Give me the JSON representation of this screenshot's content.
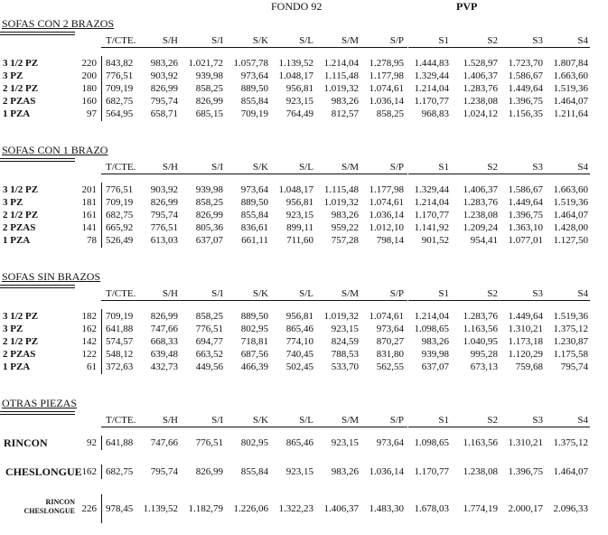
{
  "header": {
    "fondo_title": "FONDO 92",
    "pvp_title": "PVP"
  },
  "columns": [
    "T/CTE.",
    "S/H",
    "S/I",
    "S/K",
    "S/L",
    "S/M",
    "S/P",
    "S1",
    "S2",
    "S3",
    "S4"
  ],
  "sections": [
    {
      "title": "SOFAS CON 2 BRAZOS",
      "rows": [
        {
          "label": "3 1/2 PZ",
          "code": "220",
          "values": [
            "843,82",
            "983,26",
            "1.021,72",
            "1.057,78",
            "1.139,52",
            "1.214,04",
            "1.278,95",
            "1.444,83",
            "1.528,97",
            "1.723,70",
            "1.807,84"
          ]
        },
        {
          "label": "3 PZ",
          "code": "200",
          "values": [
            "776,51",
            "903,92",
            "939,98",
            "973,64",
            "1.048,17",
            "1.115,48",
            "1.177,98",
            "1.329,44",
            "1.406,37",
            "1.586,67",
            "1.663,60"
          ]
        },
        {
          "label": "2 1/2 PZ",
          "code": "180",
          "values": [
            "709,19",
            "826,99",
            "858,25",
            "889,50",
            "956,81",
            "1.019,32",
            "1.074,61",
            "1.214,04",
            "1.283,76",
            "1.449,64",
            "1.519,36"
          ]
        },
        {
          "label": "2 PZAS",
          "code": "160",
          "values": [
            "682,75",
            "795,74",
            "826,99",
            "855,84",
            "923,15",
            "983,26",
            "1.036,14",
            "1.170,77",
            "1.238,08",
            "1.396,75",
            "1.464,07"
          ]
        },
        {
          "label": "1 PZA",
          "code": "97",
          "values": [
            "564,95",
            "658,71",
            "685,15",
            "709,19",
            "764,49",
            "812,57",
            "858,25",
            "968,83",
            "1.024,12",
            "1.156,35",
            "1.211,64"
          ]
        }
      ]
    },
    {
      "title": "SOFAS CON 1 BRAZO",
      "rows": [
        {
          "label": "3 1/2 PZ",
          "code": "201",
          "values": [
            "776,51",
            "903,92",
            "939,98",
            "973,64",
            "1.048,17",
            "1.115,48",
            "1.177,98",
            "1.329,44",
            "1.406,37",
            "1.586,67",
            "1.663,60"
          ]
        },
        {
          "label": "3 PZ",
          "code": "181",
          "values": [
            "709,19",
            "826,99",
            "858,25",
            "889,50",
            "956,81",
            "1.019,32",
            "1.074,61",
            "1.214,04",
            "1.283,76",
            "1.449,64",
            "1.519,36"
          ]
        },
        {
          "label": "2 1/2 PZ",
          "code": "161",
          "values": [
            "682,75",
            "795,74",
            "826,99",
            "855,84",
            "923,15",
            "983,26",
            "1.036,14",
            "1.170,77",
            "1.238,08",
            "1.396,75",
            "1.464,07"
          ]
        },
        {
          "label": "2 PZAS",
          "code": "141",
          "values": [
            "665,92",
            "776,51",
            "805,36",
            "836,61",
            "899,11",
            "959,22",
            "1.012,10",
            "1.141,92",
            "1.209,24",
            "1.363,10",
            "1.428,00"
          ]
        },
        {
          "label": "1 PZA",
          "code": "78",
          "values": [
            "526,49",
            "613,03",
            "637,07",
            "661,11",
            "711,60",
            "757,28",
            "798,14",
            "901,52",
            "954,41",
            "1.077,01",
            "1.127,50"
          ]
        }
      ]
    },
    {
      "title": "SOFAS SIN BRAZOS",
      "rows": [
        {
          "label": "3 1/2 PZ",
          "code": "182",
          "values": [
            "709,19",
            "826,99",
            "858,25",
            "889,50",
            "956,81",
            "1.019,32",
            "1.074,61",
            "1.214,04",
            "1.283,76",
            "1.449,64",
            "1.519,36"
          ]
        },
        {
          "label": "3 PZ",
          "code": "162",
          "values": [
            "641,88",
            "747,66",
            "776,51",
            "802,95",
            "865,46",
            "923,15",
            "973,64",
            "1.098,65",
            "1.163,56",
            "1.310,21",
            "1.375,12"
          ]
        },
        {
          "label": "2 1/2 PZ",
          "code": "142",
          "values": [
            "574,57",
            "668,33",
            "694,77",
            "718,81",
            "774,10",
            "824,59",
            "870,27",
            "983,26",
            "1.040,95",
            "1.173,18",
            "1.230,87"
          ]
        },
        {
          "label": "2 PZAS",
          "code": "122",
          "values": [
            "548,12",
            "639,48",
            "663,52",
            "687,56",
            "740,45",
            "788,53",
            "831,80",
            "939,98",
            "995,28",
            "1.120,29",
            "1.175,58"
          ]
        },
        {
          "label": "1 PZA",
          "code": "61",
          "values": [
            "372,63",
            "432,73",
            "449,56",
            "466,39",
            "502,45",
            "533,70",
            "562,55",
            "637,07",
            "673,13",
            "759,68",
            "795,74"
          ]
        }
      ]
    },
    {
      "title": "OTRAS PIEZAS",
      "rows": [
        {
          "label": "RINCON",
          "code": "92",
          "values": [
            "641,88",
            "747,66",
            "776,51",
            "802,95",
            "865,46",
            "923,15",
            "973,64",
            "1.098,65",
            "1.163,56",
            "1.310,21",
            "1.375,12"
          ]
        },
        {
          "label": "CHESLONGUE",
          "code": "162",
          "values": [
            "682,75",
            "795,74",
            "826,99",
            "855,84",
            "923,15",
            "983,26",
            "1.036,14",
            "1.170,77",
            "1.238,08",
            "1.396,75",
            "1.464,07"
          ]
        },
        {
          "label": "RINCON",
          "label2": "CHESLONGUE",
          "code": "226",
          "values": [
            "978,45",
            "1.139,52",
            "1.182,79",
            "1.226,06",
            "1.322,23",
            "1.406,37",
            "1.483,30",
            "1.678,03",
            "1.774,19",
            "2.000,17",
            "2.096,33"
          ]
        }
      ]
    }
  ]
}
